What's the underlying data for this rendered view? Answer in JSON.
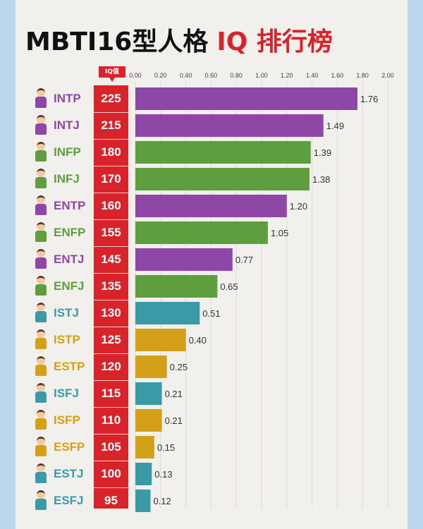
{
  "title": {
    "part1": "MBTI16型人格",
    "part2": "IQ 排行榜"
  },
  "iq_header": "IQ值",
  "colors": {
    "purple": "#8e47a6",
    "green": "#5e9e3f",
    "teal": "#3a9aa6",
    "gold": "#d4a017",
    "iq_red": "#d8232a"
  },
  "chart_data": {
    "type": "bar",
    "orientation": "horizontal",
    "xlim": [
      0,
      2.0
    ],
    "ticks": [
      "0.00",
      "0.20",
      "0.40",
      "0.60",
      "0.80",
      "1.00",
      "1.20",
      "1.40",
      "1.60",
      "1.80",
      "2.00"
    ],
    "categories": [
      "INTP",
      "INTJ",
      "INFP",
      "INFJ",
      "ENTP",
      "ENFP",
      "ENTJ",
      "ENFJ",
      "ISTJ",
      "ISTP",
      "ESTP",
      "ISFJ",
      "ISFP",
      "ESFP",
      "ESTJ",
      "ESFJ"
    ],
    "iq": [
      "225",
      "215",
      "180",
      "170",
      "160",
      "155",
      "145",
      "135",
      "130",
      "125",
      "120",
      "115",
      "110",
      "105",
      "100",
      "95"
    ],
    "values": [
      1.76,
      1.49,
      1.39,
      1.38,
      1.2,
      1.05,
      0.77,
      0.65,
      0.51,
      0.4,
      0.25,
      0.21,
      0.21,
      0.15,
      0.13,
      0.12
    ],
    "labels": [
      "1.76",
      "1.49",
      "1.39",
      "1.38",
      "1.20",
      "1.05",
      "0.77",
      "0.65",
      "0.51",
      "0.40",
      "0.25",
      "0.21",
      "0.21",
      "0.15",
      "0.13",
      "0.12"
    ],
    "bar_colors": [
      "#8e47a6",
      "#8e47a6",
      "#5e9e3f",
      "#5e9e3f",
      "#8e47a6",
      "#5e9e3f",
      "#8e47a6",
      "#5e9e3f",
      "#3a9aa6",
      "#d4a017",
      "#d4a017",
      "#3a9aa6",
      "#d4a017",
      "#d4a017",
      "#3a9aa6",
      "#3a9aa6"
    ],
    "grid": true
  }
}
